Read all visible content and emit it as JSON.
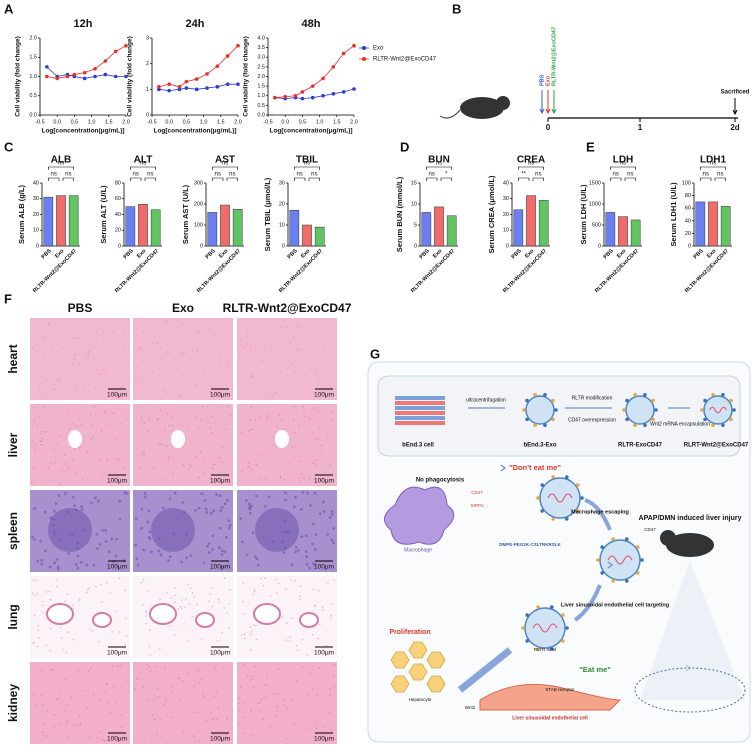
{
  "panel_labels": [
    "A",
    "B",
    "C",
    "D",
    "E",
    "F",
    "G"
  ],
  "chart_data": [
    {
      "type": "line",
      "title": "12h",
      "xlabel": "Log[concentration(μg/mL)]",
      "ylabel": "Cell viability (fold change)",
      "x": [
        -0.3,
        0,
        0.3,
        0.5,
        0.8,
        1.1,
        1.4,
        1.7,
        2.0
      ],
      "series": [
        {
          "name": "Exo",
          "color": "#2b3bd6",
          "values": [
            1.25,
            1.0,
            1.05,
            1.0,
            0.95,
            1.0,
            1.05,
            1.0,
            1.0
          ]
        },
        {
          "name": "RLTR-Wnt2@ExoCD47",
          "color": "#e8302a",
          "values": [
            1.0,
            0.95,
            1.0,
            1.05,
            1.1,
            1.2,
            1.4,
            1.65,
            1.8
          ]
        }
      ],
      "xlim": [
        -0.5,
        2.0
      ],
      "xticks": [
        -0.5,
        {
          "value": 0,
          "label": "0.0"
        },
        0.5,
        {
          "value": 1,
          "label": "1.0"
        },
        1.5,
        {
          "value": 2,
          "label": "2.0"
        }
      ],
      "ylim": [
        0,
        2
      ],
      "yticks": [
        {
          "value": 0,
          "label": "0.0"
        },
        0.5,
        {
          "value": 1,
          "label": "1.0"
        },
        1.5,
        {
          "value": 2,
          "label": "2.0"
        }
      ]
    },
    {
      "type": "line",
      "title": "24h",
      "xlabel": "Log[concentration(μg/mL)]",
      "ylabel": "Cell viability (fold change)",
      "x": [
        -0.3,
        0,
        0.3,
        0.5,
        0.8,
        1.1,
        1.4,
        1.7,
        2.0
      ],
      "series": [
        {
          "name": "Exo",
          "color": "#2b3bd6",
          "values": [
            1.0,
            0.95,
            1.0,
            1.05,
            1.0,
            1.05,
            1.1,
            1.2,
            1.2
          ]
        },
        {
          "name": "RLTR-Wnt2@ExoCD47",
          "color": "#e8302a",
          "values": [
            1.1,
            1.2,
            1.1,
            1.3,
            1.4,
            1.6,
            1.9,
            2.3,
            2.7
          ]
        }
      ],
      "xlim": [
        -0.5,
        2.0
      ],
      "xticks": [
        -0.5,
        {
          "value": 0,
          "label": "0.0"
        },
        0.5,
        {
          "value": 1,
          "label": "1.0"
        },
        1.5,
        {
          "value": 2,
          "label": "2.0"
        }
      ],
      "ylim": [
        0,
        3
      ],
      "yticks": [
        0,
        1,
        2,
        3
      ]
    },
    {
      "type": "line",
      "title": "48h",
      "xlabel": "Log[concentration(μg/mL)]",
      "ylabel": "Cell viability (fold change)",
      "x": [
        -0.3,
        0,
        0.3,
        0.5,
        0.8,
        1.1,
        1.4,
        1.7,
        2.0
      ],
      "series": [
        {
          "name": "Exo",
          "color": "#2b3bd6",
          "values": [
            0.9,
            0.85,
            0.9,
            0.85,
            0.9,
            1.0,
            1.1,
            1.2,
            1.35
          ]
        },
        {
          "name": "RLTR-Wnt2@ExoCD47",
          "color": "#e8302a",
          "values": [
            0.9,
            0.95,
            1.0,
            1.2,
            1.5,
            1.9,
            2.5,
            3.2,
            3.6
          ]
        }
      ],
      "xlim": [
        -0.5,
        2.0
      ],
      "xticks": [
        -0.5,
        {
          "value": 0,
          "label": "0.0"
        },
        0.5,
        {
          "value": 1,
          "label": "1.0"
        },
        1.5,
        {
          "value": 2,
          "label": "2.0"
        }
      ],
      "ylim": [
        0,
        4
      ],
      "yticks": [
        {
          "value": 0,
          "label": "0.0"
        },
        0.5,
        {
          "value": 1,
          "label": "1.0"
        },
        1.5,
        {
          "value": 2,
          "label": "2.0"
        },
        2.5,
        {
          "value": 3,
          "label": "3.0"
        },
        3.5,
        {
          "value": 4,
          "label": "4.0"
        }
      ],
      "legend": "right"
    },
    {
      "type": "bar",
      "title": "ALB",
      "ylabel": "Serum ALB (g/L)",
      "categories": [
        "PBS",
        "Exo",
        "RLTR-Wnt2@ExoCD47"
      ],
      "values": [
        31,
        32,
        32
      ],
      "colors": [
        "#6a7ff0",
        "#f26b6b",
        "#62c462"
      ],
      "ylim": [
        0,
        40
      ],
      "yticks": [
        0,
        10,
        20,
        30,
        40
      ],
      "annotations": [
        "ns",
        "ns",
        "ns"
      ]
    },
    {
      "type": "bar",
      "title": "ALT",
      "ylabel": "Serum ALT (U/L)",
      "categories": [
        "PBS",
        "Exo",
        "RLTR-Wnt2@ExoCD47"
      ],
      "values": [
        50,
        53,
        46
      ],
      "colors": [
        "#6a7ff0",
        "#f26b6b",
        "#62c462"
      ],
      "ylim": [
        0,
        80
      ],
      "yticks": [
        0,
        20,
        40,
        60,
        80
      ],
      "annotations": [
        "ns",
        "ns",
        "ns"
      ]
    },
    {
      "type": "bar",
      "title": "AST",
      "ylabel": "Serum AST (U/L)",
      "categories": [
        "PBS",
        "Exo",
        "RLTR-Wnt2@ExoCD47"
      ],
      "values": [
        160,
        195,
        175
      ],
      "colors": [
        "#6a7ff0",
        "#f26b6b",
        "#62c462"
      ],
      "ylim": [
        0,
        300
      ],
      "yticks": [
        0,
        100,
        200,
        300
      ],
      "annotations": [
        "ns",
        "ns",
        "ns"
      ]
    },
    {
      "type": "bar",
      "title": "TBIL",
      "ylabel": "Serum TBIL (μmol/L)",
      "categories": [
        "PBS",
        "Exo",
        "RLTR-Wnt2@ExoCD47"
      ],
      "values": [
        17,
        10,
        9
      ],
      "colors": [
        "#6a7ff0",
        "#f26b6b",
        "#62c462"
      ],
      "ylim": [
        0,
        30
      ],
      "yticks": [
        0,
        10,
        20,
        30
      ],
      "annotations": [
        "ns",
        "ns",
        "ns"
      ]
    },
    {
      "type": "bar",
      "title": "BUN",
      "ylabel": "Serum BUN (mmol/L)",
      "categories": [
        "PBS",
        "Exo",
        "RLTR-Wnt2@ExoCD47"
      ],
      "values": [
        8,
        9.3,
        7.2
      ],
      "colors": [
        "#6a7ff0",
        "#f26b6b",
        "#62c462"
      ],
      "ylim": [
        0,
        15
      ],
      "yticks": [
        0,
        5,
        10,
        15
      ],
      "annotations": [
        "ns",
        "ns",
        "*"
      ]
    },
    {
      "type": "bar",
      "title": "CREA",
      "ylabel": "Serum CREA (μmol/L)",
      "categories": [
        "PBS",
        "Exo",
        "RLTR-Wnt2@ExoCD47"
      ],
      "values": [
        23,
        32,
        29
      ],
      "colors": [
        "#6a7ff0",
        "#f26b6b",
        "#62c462"
      ],
      "ylim": [
        0,
        40
      ],
      "yticks": [
        0,
        10,
        20,
        30,
        40
      ],
      "annotations": [
        "ns",
        "**",
        "ns"
      ]
    },
    {
      "type": "bar",
      "title": "LDH",
      "ylabel": "Serum LDH (U/L)",
      "categories": [
        "PBS",
        "Exo",
        "RLTR-Wnt2@ExoCD47"
      ],
      "values": [
        800,
        700,
        620
      ],
      "colors": [
        "#6a7ff0",
        "#f26b6b",
        "#62c462"
      ],
      "ylim": [
        0,
        1500
      ],
      "yticks": [
        0,
        500,
        1000,
        1500
      ],
      "annotations": [
        "ns",
        "ns",
        "ns"
      ]
    },
    {
      "type": "bar",
      "title": "LDH1",
      "ylabel": "Serum LDH1 (U/L)",
      "categories": [
        "PBS",
        "Exo",
        "RLTR-Wnt2@ExoCD47"
      ],
      "values": [
        70,
        70,
        63
      ],
      "colors": [
        "#6a7ff0",
        "#f26b6b",
        "#62c462"
      ],
      "ylim": [
        0,
        100
      ],
      "yticks": [
        0,
        20,
        40,
        60,
        80,
        100
      ],
      "annotations": [
        "ns",
        "ns",
        "ns"
      ]
    }
  ],
  "timeline": {
    "treatments": [
      "PBS",
      "Exo",
      "RLTR-Wnt2@ExoCD47"
    ],
    "endpoint": "Sacrificed",
    "ticks": [
      "0",
      "1",
      "2d"
    ]
  },
  "histology": {
    "columns": [
      "PBS",
      "Exo",
      "RLTR-Wnt2@ExoCD47"
    ],
    "rows": [
      "heart",
      "liver",
      "spleen",
      "lung",
      "kidney"
    ],
    "scale_bar": "100μm"
  },
  "schematic": {
    "cell": "bEnd.3 cell",
    "step1": "ultracentrifugation",
    "exo": "bEnd.3-Exo",
    "step2a": "RLTR modification",
    "step2b": "CD47 overexpression",
    "exo_cd47": "RLTR-ExoCD47",
    "step3": "Wnt2 mRNA encapsulation",
    "final": "RLRT-Wnt2@ExoCD47",
    "model": "APAP/DMN induced liver injury",
    "no_phago": "No phagocytosis",
    "dont_eat": "\"Don't eat me\"",
    "cd47_a": "CD47",
    "sirpa": "SIRPα",
    "macrophage": "Macrophage",
    "escape": "Macrophage escaping",
    "cd47_b": "CD47",
    "lipid": "DMPE-PEG2K-CSLTRKRSLK",
    "prolif": "Proliferation",
    "hepatocyte": "Hepatocyte",
    "wnt2": "Wnt2",
    "motif": "RLTR motif",
    "stab": "STAB receptor",
    "targeting": "Liver sinusoidal endothelial cell targeting",
    "eat": "\"Eat me\"",
    "lsec": "Liver sinusoidal endothelial cell"
  }
}
